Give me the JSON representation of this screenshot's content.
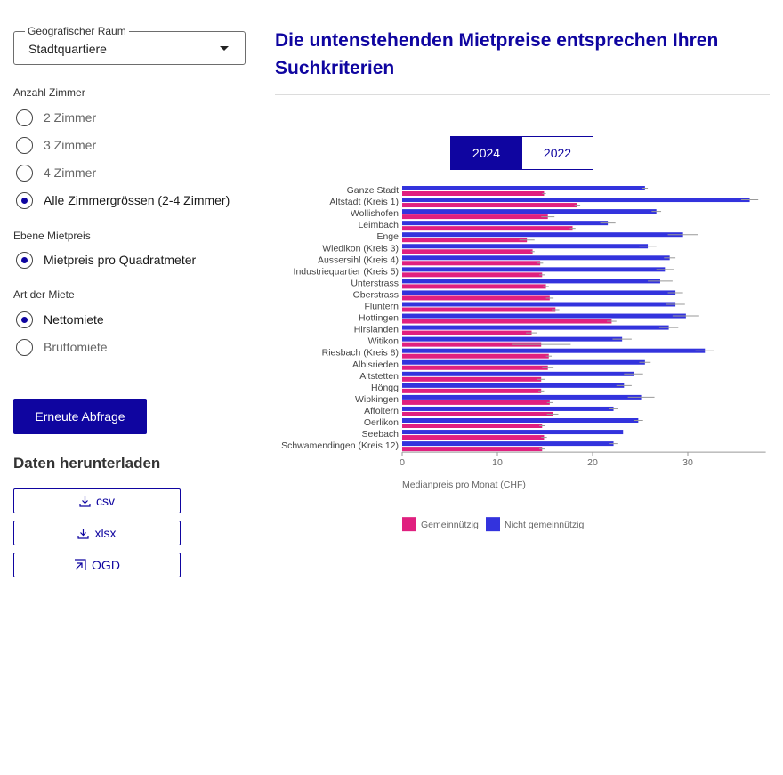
{
  "filter": {
    "geo_legend": "Geografischer Raum",
    "geo_value": "Stadtquartiere",
    "rooms_label": "Anzahl Zimmer",
    "rooms_options": [
      "2 Zimmer",
      "3 Zimmer",
      "4 Zimmer",
      "Alle Zimmergrössen (2-4 Zimmer)"
    ],
    "level_label": "Ebene Mietpreis",
    "level_options": [
      "Mietpreis pro Quadratmeter"
    ],
    "type_label": "Art der Miete",
    "type_options": [
      "Nettomiete",
      "Bruttomiete"
    ],
    "submit_label": "Erneute Abfrage"
  },
  "download": {
    "title": "Daten herunterladen",
    "csv_label": "csv",
    "xlsx_label": "xlsx",
    "ogd_label": "OGD"
  },
  "main": {
    "title": "Die untenstehenden Mietpreise entsprechen Ihren Suchkriterien",
    "year_tabs": [
      "2024",
      "2022"
    ]
  },
  "colors": {
    "accent": "#0f05a0",
    "gemeinnuetzig": "#e0207f",
    "nicht_gemeinnuetzig": "#3333dd"
  },
  "chart_data": {
    "type": "bar",
    "orientation": "horizontal",
    "categories": [
      "Ganze Stadt",
      "Altstadt (Kreis 1)",
      "Wollishofen",
      "Leimbach",
      "Enge",
      "Wiedikon (Kreis 3)",
      "Aussersihl (Kreis 4)",
      "Industriequartier (Kreis 5)",
      "Unterstrass",
      "Oberstrass",
      "Fluntern",
      "Hottingen",
      "Hirslanden",
      "Witikon",
      "Riesbach (Kreis 8)",
      "Albisrieden",
      "Altstetten",
      "Höngg",
      "Wipkingen",
      "Affoltern",
      "Oerlikon",
      "Seebach",
      "Schwamendingen (Kreis 12)"
    ],
    "series": [
      {
        "name": "Nicht gemeinnützig",
        "values": [
          25.5,
          36.5,
          26.7,
          21.6,
          29.5,
          25.8,
          28.1,
          27.6,
          27.1,
          28.7,
          28.7,
          29.8,
          28.0,
          23.1,
          31.8,
          25.5,
          24.3,
          23.3,
          25.1,
          22.2,
          24.8,
          23.2,
          22.2
        ],
        "err": [
          0.3,
          0.9,
          0.5,
          0.8,
          1.6,
          0.9,
          0.6,
          0.9,
          1.3,
          0.8,
          1.0,
          1.4,
          1.0,
          1.0,
          1.0,
          0.6,
          1.0,
          0.8,
          1.4,
          0.5,
          0.5,
          0.9,
          0.4
        ]
      },
      {
        "name": "Gemeinnützig",
        "values": [
          14.9,
          18.4,
          15.3,
          17.9,
          13.1,
          13.7,
          14.5,
          14.7,
          15.1,
          15.5,
          16.1,
          22.0,
          13.6,
          14.6,
          15.4,
          15.3,
          14.6,
          14.6,
          15.5,
          15.8,
          14.7,
          14.9,
          14.7
        ],
        "err": [
          0.2,
          0.3,
          0.7,
          0.3,
          0.8,
          0.2,
          0.3,
          0.3,
          0.3,
          0.4,
          0.4,
          0.5,
          0.6,
          3.1,
          0.3,
          0.6,
          0.4,
          0.3,
          0.3,
          0.6,
          0.3,
          0.3,
          0.3
        ]
      }
    ],
    "x_ticks": [
      "0",
      "10",
      "20",
      "30"
    ],
    "xlim": [
      0,
      38
    ],
    "xlabel": "Medianpreis pro Monat (CHF)",
    "legend": [
      "Gemeinnützig",
      "Nicht gemeinnützig"
    ],
    "legend_position": "bottom-left",
    "grid": false
  }
}
